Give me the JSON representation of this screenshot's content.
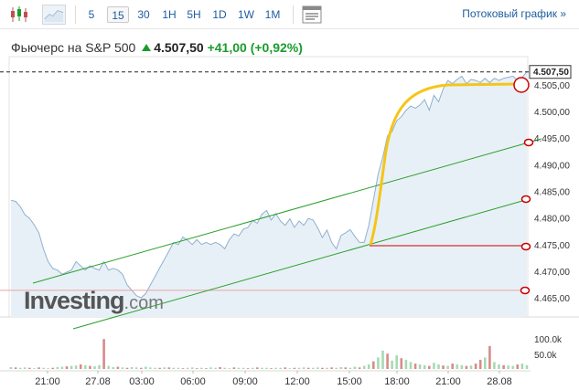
{
  "toolbar": {
    "timeframes": [
      "5",
      "15",
      "30",
      "1H",
      "5H",
      "1D",
      "1W",
      "1M"
    ],
    "active_timeframe": "15",
    "streaming_label": "Потоковый график",
    "streaming_chevron": "»",
    "icons": [
      "candlestick-icon",
      "area-chart-icon",
      "indicators-icon"
    ]
  },
  "quote": {
    "name": "Фьючерс на S&P 500",
    "direction_icon": "up-arrow-icon",
    "price": "4.507,50",
    "change": "+41,00",
    "change_pct": "(+0,92%)"
  },
  "logo": {
    "word": "Investing",
    "suffix": ".com"
  },
  "colors": {
    "link": "#1d5c9e",
    "up": "#1a9c2d",
    "down": "#c0504d",
    "area_line": "#8fb0cf",
    "area_fill": "#e8f0f7",
    "trend": "#2aa02a",
    "highlight": "#f5c518",
    "marker": "#cc0000"
  },
  "chart_data": {
    "type": "area",
    "y_ticks": [
      "4.505,00",
      "4.500,00",
      "4.495,00",
      "4.490,00",
      "4.485,00",
      "4.480,00",
      "4.475,00",
      "4.470,00",
      "4.465,00"
    ],
    "ylim": [
      4461.5,
      4509
    ],
    "x_ticks": [
      "21:00",
      "27.08",
      "03:00",
      "06:00",
      "09:00",
      "12:00",
      "15:00",
      "18:00",
      "21:00",
      "28.08"
    ],
    "last_price_label": "4.507,50",
    "volume_ticks": [
      "100.0k",
      "50.0k"
    ],
    "series": [
      {
        "values": [
          4483.4,
          4483.2,
          4482.2,
          4480.7,
          4480.0,
          4478.8,
          4477.3,
          4474.2,
          4471.9,
          4470.6,
          4470.3,
          4469.5,
          4469.9,
          4470.3,
          4471.9,
          4471.1,
          4470.3,
          4471.1,
          4470.6,
          4470.3,
          4471.9,
          4470.3,
          4470.6,
          4470.3,
          4469.5,
          4467.5,
          4466.5,
          4465.5,
          4465.1,
          4465.9,
          4467.5,
          4469.1,
          4470.7,
          4472.3,
          4473.9,
          4475.5,
          4475.1,
          4476.5,
          4475.9,
          4475.1,
          4476.0,
          4475.1,
          4475.5,
          4475.1,
          4475.5,
          4475.1,
          4474.3,
          4476.0,
          4477.1,
          4476.7,
          4478.0,
          4478.3,
          4479.6,
          4479.1,
          4480.8,
          4481.5,
          4479.7,
          4480.9,
          4479.5,
          4478.7,
          4479.9,
          4478.3,
          4479.5,
          4478.7,
          4480.0,
          4479.7,
          4478.2,
          4476.4,
          4477.8,
          4475.5,
          4474.3,
          4476.8,
          4477.3,
          4477.9,
          4476.6,
          4475.5,
          4475.5,
          4478.7,
          4483.5,
          4488.3,
          4491.5,
          4495.5,
          4496.3,
          4498.3,
          4499.1,
          4500.3,
          4501.1,
          4500.7,
          4501.3,
          4502.3,
          4500.3,
          4503.1,
          4501.9,
          4504.3,
          4505.9,
          4505.3,
          4506.1,
          4506.7,
          4505.3,
          4506.1,
          4505.9,
          4505.5,
          4506.3,
          4505.5,
          4506.3,
          4505.9,
          4506.3,
          4506.5,
          4506.7,
          4505.9,
          4506.5,
          4507.5
        ]
      }
    ],
    "volume": [
      5,
      4,
      3,
      4,
      3,
      2,
      4,
      3,
      2,
      3,
      5,
      6,
      7,
      8,
      9,
      12,
      10,
      8,
      7,
      10,
      78,
      8,
      5,
      6,
      4,
      3,
      5,
      4,
      3,
      6,
      4,
      3,
      3,
      4,
      4,
      3,
      3,
      2,
      3,
      4,
      2,
      3,
      2,
      4,
      3,
      5,
      3,
      2,
      4,
      3,
      3,
      2,
      3,
      4,
      3,
      3,
      2,
      3,
      3,
      4,
      2,
      3,
      3,
      4,
      3,
      3,
      4,
      3,
      3,
      4,
      3,
      5,
      4,
      3,
      6,
      4,
      8,
      12,
      20,
      30,
      48,
      40,
      22,
      36,
      28,
      24,
      18,
      14,
      12,
      10,
      8,
      16,
      12,
      9,
      8,
      14,
      12,
      10,
      8,
      9,
      14,
      24,
      30,
      60,
      18,
      12,
      10,
      9,
      8,
      12,
      14,
      10
    ],
    "volume_up": [
      true,
      false,
      true,
      true,
      false,
      true,
      false,
      true,
      true,
      false,
      true,
      true,
      false,
      true,
      true,
      false,
      true,
      false,
      true,
      true,
      false,
      true,
      true,
      false,
      true,
      false,
      true,
      true,
      false,
      true,
      true,
      true,
      false,
      true,
      false,
      true,
      true,
      false,
      true,
      true,
      false,
      true,
      false,
      true,
      true,
      false,
      true,
      true,
      false,
      true,
      true,
      false,
      true,
      false,
      true,
      true,
      false,
      true,
      true,
      false,
      true,
      false,
      true,
      true,
      false,
      true,
      true,
      false,
      true,
      false,
      true,
      true,
      false,
      true,
      true,
      false,
      true,
      true,
      false,
      true,
      true,
      false,
      true,
      true,
      false,
      true,
      true,
      false,
      true,
      true,
      false,
      true,
      true,
      false,
      true,
      false,
      true,
      true,
      false,
      true,
      false,
      false,
      true,
      false,
      true,
      true,
      false,
      true,
      true,
      false,
      true,
      true
    ],
    "horizontal_lines": [
      {
        "value": 4507.5,
        "style": "dashed",
        "color": "#222222"
      },
      {
        "value": 4466.5,
        "style": "solid",
        "color": "#e8a5a5"
      }
    ]
  }
}
